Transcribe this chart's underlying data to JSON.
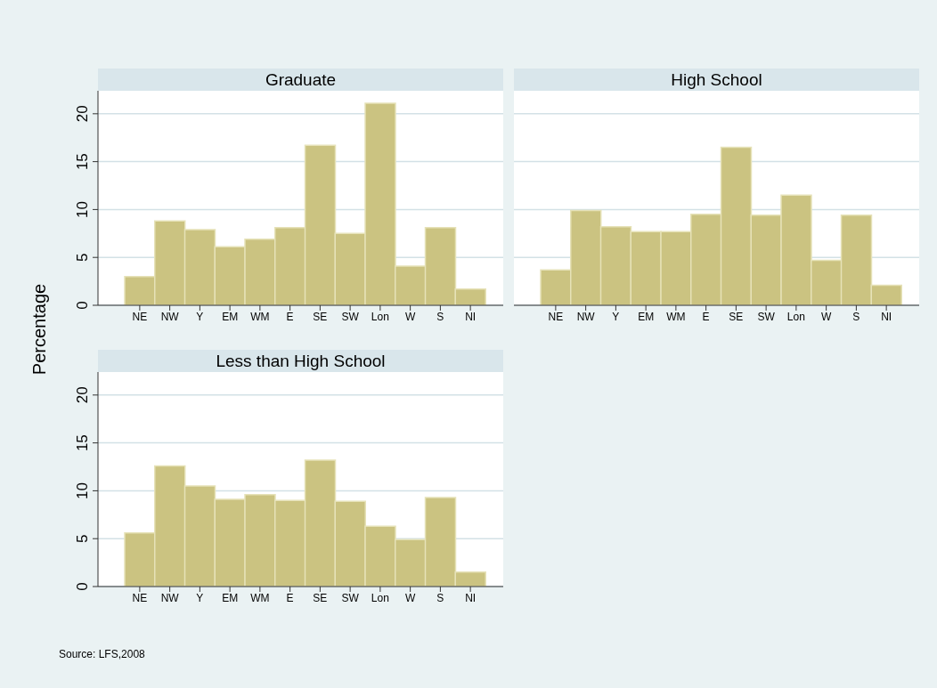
{
  "chart_data": [
    {
      "type": "bar",
      "title": "Graduate",
      "ylabel": "Percentage",
      "categories": [
        "NE",
        "NW",
        "Y",
        "EM",
        "WM",
        "E",
        "SE",
        "SW",
        "Lon",
        "W",
        "S",
        "NI"
      ],
      "values": [
        3.0,
        8.8,
        7.9,
        6.1,
        6.9,
        8.1,
        16.7,
        7.5,
        21.1,
        4.1,
        8.1,
        1.7
      ],
      "color": "#cbc381",
      "ylim": [
        0,
        22.4
      ],
      "yticks": [
        0,
        5,
        10,
        15,
        20
      ],
      "grid": "y"
    },
    {
      "type": "bar",
      "title": "High School",
      "categories": [
        "NE",
        "NW",
        "Y",
        "EM",
        "WM",
        "E",
        "SE",
        "SW",
        "Lon",
        "W",
        "S",
        "NI"
      ],
      "values": [
        3.7,
        9.9,
        8.2,
        7.7,
        7.7,
        9.5,
        16.5,
        9.4,
        11.5,
        4.7,
        9.4,
        2.1
      ],
      "color": "#cbc381",
      "ylim": [
        0,
        22.4
      ],
      "yticks": [
        0,
        5,
        10,
        15,
        20
      ],
      "grid": "y",
      "tick_labels": "x"
    },
    {
      "type": "bar",
      "title": "Less than High School",
      "categories": [
        "NE",
        "NW",
        "Y",
        "EM",
        "WM",
        "E",
        "SE",
        "SW",
        "Lon",
        "W",
        "S",
        "NI"
      ],
      "values": [
        5.6,
        12.6,
        10.5,
        9.1,
        9.6,
        9.0,
        13.2,
        8.9,
        6.3,
        4.9,
        9.3,
        1.5
      ],
      "color": "#cbc381",
      "ylim": [
        0,
        22.4
      ],
      "yticks": [
        0,
        5,
        10,
        15,
        20
      ],
      "grid": "y",
      "annotations": [
        "Source: LFS,2008"
      ]
    }
  ]
}
